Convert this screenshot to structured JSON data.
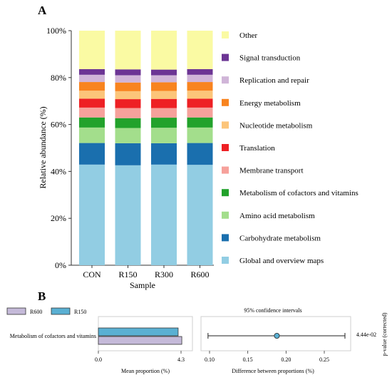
{
  "panel_a": {
    "label": "A",
    "chart_data": {
      "type": "bar",
      "stacked": true,
      "categories": [
        "CON",
        "R150",
        "R300",
        "R600"
      ],
      "xlabel": "Sample",
      "ylabel": "Relative abundance (%)",
      "ylim": [
        0,
        100
      ],
      "yticks": [
        "0%",
        "20%",
        "40%",
        "60%",
        "80%",
        "100%"
      ],
      "legend_position": "right",
      "series": [
        {
          "name": "Global and overview maps",
          "color": "#92cde3",
          "values": [
            42.9,
            42.6,
            42.9,
            42.8
          ]
        },
        {
          "name": "Carbohydrate metabolism",
          "color": "#1a6fae",
          "values": [
            9.2,
            9.4,
            9.1,
            9.3
          ]
        },
        {
          "name": "Amino acid metabolism",
          "color": "#a3de8c",
          "values": [
            6.6,
            6.5,
            6.6,
            6.6
          ]
        },
        {
          "name": "Metabolism of cofactors and vitamins",
          "color": "#22a22b",
          "values": [
            4.3,
            4.2,
            4.3,
            4.3
          ]
        },
        {
          "name": "Membrane transport",
          "color": "#f6a19b",
          "values": [
            4.2,
            4.3,
            4.1,
            4.2
          ]
        },
        {
          "name": "Translation",
          "color": "#ee2024",
          "values": [
            3.8,
            3.8,
            3.9,
            3.8
          ]
        },
        {
          "name": "Nucleotide metabolism",
          "color": "#fcc57a",
          "values": [
            3.4,
            3.4,
            3.4,
            3.4
          ]
        },
        {
          "name": "Energy metabolism",
          "color": "#f8841f",
          "values": [
            3.7,
            3.7,
            3.7,
            3.7
          ]
        },
        {
          "name": "Replication and repair",
          "color": "#d0b5d8",
          "values": [
            3.1,
            3.1,
            3.0,
            3.1
          ]
        },
        {
          "name": "Signal transduction",
          "color": "#6c3594",
          "values": [
            2.4,
            2.5,
            2.4,
            2.4
          ]
        },
        {
          "name": "Other",
          "color": "#fafaa3",
          "values": [
            16.4,
            16.5,
            16.6,
            16.4
          ]
        }
      ]
    }
  },
  "panel_b": {
    "label": "B",
    "chart_data": [
      {
        "type": "bar",
        "orientation": "horizontal",
        "categories": [
          "Metabolism of cofactors and vitamins"
        ],
        "xlabel": "Mean proportion (%)",
        "xlim": [
          0,
          4.3
        ],
        "xticks": [
          "0.0",
          "4.3"
        ],
        "legend_position": "top-left",
        "series": [
          {
            "name": "R600",
            "color": "#c5bad9",
            "values": [
              4.34
            ]
          },
          {
            "name": "R150",
            "color": "#5ab0d3",
            "values": [
              4.15
            ]
          }
        ]
      },
      {
        "type": "scatter",
        "title": "95% confidence intervals",
        "xlabel": "Difference between proportions (%)",
        "xlim": [
          0.08,
          0.31
        ],
        "xticks": [
          "0.10",
          "0.15",
          "0.20",
          "0.25"
        ],
        "point": {
          "value": 0.188,
          "ci_low": 0.098,
          "ci_high": 0.277,
          "color": "#5ab0d3"
        },
        "y2label": "p-value (corrected)",
        "pvalue": "4.44e-02"
      }
    ]
  }
}
